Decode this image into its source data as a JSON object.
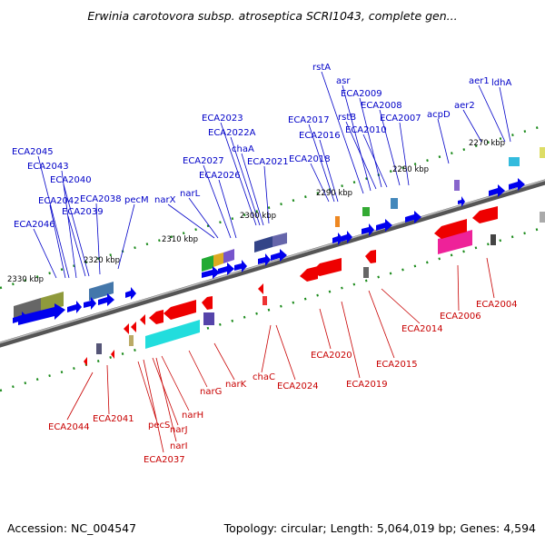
{
  "header": {
    "title": "Erwinia carotovora subsp. atroseptica SCRI1043, complete gen..."
  },
  "footer": {
    "accession": "Accession: NC_004547",
    "summary": "Topology: circular; Length: 5,064,019 bp; Genes: 4,594"
  },
  "colors": {
    "forward_label": "#0000c8",
    "reverse_label": "#c80000",
    "forward_gene": "#0000ee",
    "reverse_gene": "#ee0000",
    "backbone": "#777777"
  },
  "ruler": [
    "2330 kbp",
    "2320 kbp",
    "2310 kbp",
    "2300 kbp",
    "2290 kbp",
    "2280 kbp",
    "2270 kbp"
  ],
  "forward_labels": [
    "ECA2046",
    "ECA2042",
    "ECA2039",
    "ECA2040",
    "ECA2043",
    "ECA2045",
    "ECA2038",
    "pecM",
    "narX",
    "narL",
    "ECA2027",
    "ECA2026",
    "ECA2023",
    "ECA2022A",
    "chaA",
    "ECA2021",
    "ECA2018",
    "ECA2017",
    "ECA2016",
    "rstA",
    "asr",
    "rstB",
    "ECA2009",
    "ECA2010",
    "ECA2008",
    "ECA2007",
    "acpD",
    "aer2",
    "aer1",
    "ldhA"
  ],
  "reverse_labels": [
    "ECA2044",
    "ECA2041",
    "pecS",
    "ECA2037",
    "narJ",
    "narI",
    "narH",
    "narG",
    "narK",
    "chaC",
    "ECA2024",
    "ECA2020",
    "ECA2019",
    "ECA2015",
    "ECA2014",
    "ECA2006",
    "ECA2004"
  ]
}
